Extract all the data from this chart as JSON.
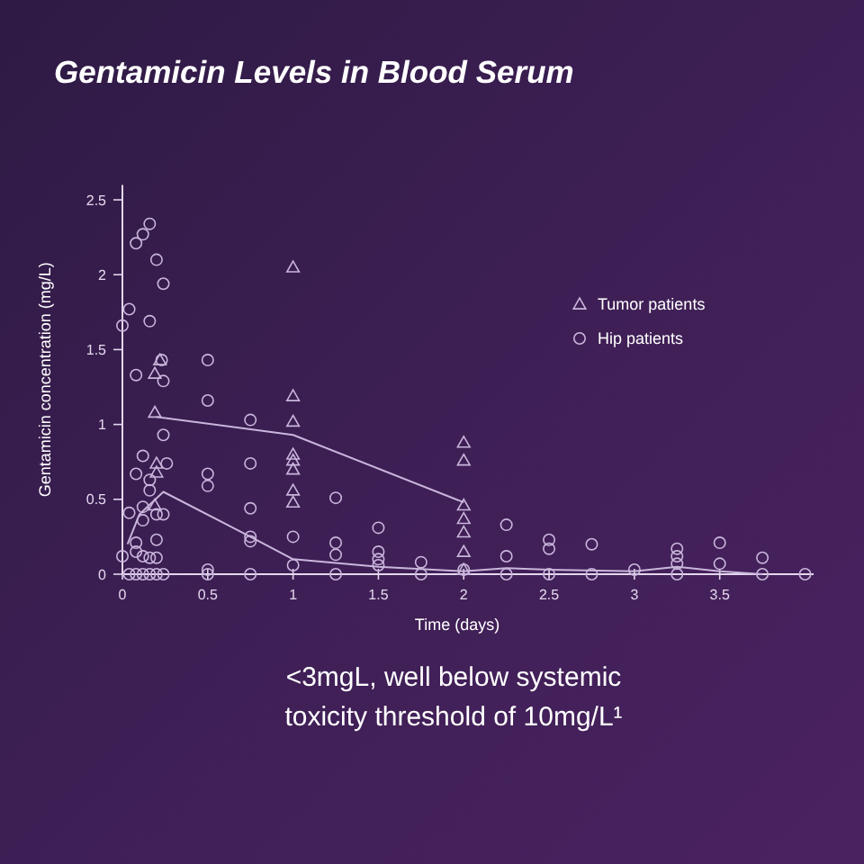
{
  "chart_data": {
    "type": "scatter",
    "title": "Gentamicin Levels in Blood Serum",
    "xlabel": "Time (days)",
    "ylabel": "Gentamicin concentration (mg/L)",
    "xlim": [
      0,
      4.05
    ],
    "ylim": [
      0,
      2.6
    ],
    "xticks": [
      0,
      0.5,
      1,
      1.5,
      2,
      2.5,
      3,
      3.5
    ],
    "yticks": [
      0,
      0.5,
      1,
      1.5,
      2,
      2.5
    ],
    "grid": false,
    "legend": "top right",
    "annotations": [
      "<3mgL, well below systemic toxicity threshold of 10mg/L¹"
    ],
    "series": [
      {
        "name": "Tumor patients",
        "marker": "triangle",
        "color": "#c9b6dc",
        "x": [
          0.22,
          0.19,
          0.19,
          0.2,
          0.2,
          0.19,
          1,
          1,
          1,
          1,
          1,
          1,
          1,
          1,
          2,
          2,
          2,
          2,
          2,
          2,
          2
        ],
        "values": [
          1.43,
          1.34,
          1.08,
          0.74,
          0.68,
          0.46,
          2.05,
          1.19,
          1.02,
          0.8,
          0.76,
          0.7,
          0.56,
          0.48,
          0.88,
          0.76,
          0.46,
          0.37,
          0.28,
          0.15,
          0.03
        ]
      },
      {
        "name": "Hip patients",
        "marker": "circle",
        "color": "#c9b6dc",
        "x": [
          0,
          0.04,
          0.08,
          0.12,
          0.16,
          0.2,
          0.24,
          0.16,
          0.08,
          0.24,
          0.23,
          0.24,
          0.12,
          0.08,
          0.16,
          0.16,
          0.26,
          0.04,
          0.12,
          0.12,
          0.2,
          0.24,
          0,
          0.08,
          0.08,
          0.12,
          0.16,
          0.2,
          0.2,
          0.04,
          0.08,
          0.12,
          0.16,
          0.2,
          0.24,
          0.5,
          0.5,
          0.5,
          0.5,
          0.5,
          0.5,
          0.75,
          0.75,
          0.75,
          0.75,
          0.75,
          0.75,
          1,
          1,
          1.25,
          1.25,
          1.25,
          1.25,
          1.5,
          1.5,
          1.5,
          1.5,
          1.75,
          1.75,
          2,
          2.25,
          2.25,
          2.25,
          2.5,
          2.5,
          2.5,
          2.75,
          2.75,
          3,
          3.25,
          3.25,
          3.25,
          3.25,
          3.5,
          3.5,
          3.75,
          3.75,
          4
        ],
        "values": [
          1.66,
          1.77,
          2.21,
          2.27,
          2.34,
          2.1,
          1.94,
          1.69,
          1.33,
          1.29,
          1.43,
          0.93,
          0.79,
          0.67,
          0.63,
          0.56,
          0.74,
          0.41,
          0.36,
          0.45,
          0.4,
          0.4,
          0.12,
          0.21,
          0.15,
          0.12,
          0.11,
          0.11,
          0.23,
          0,
          0,
          0,
          0,
          0,
          0,
          1.43,
          1.16,
          0.67,
          0.59,
          0.03,
          0,
          1.03,
          0.74,
          0.44,
          0.25,
          0.22,
          0,
          0.25,
          0.06,
          0.51,
          0.21,
          0.13,
          0,
          0.31,
          0.15,
          0.1,
          0.06,
          0.08,
          0,
          0.03,
          0.33,
          0.12,
          0,
          0.23,
          0.17,
          0,
          0.2,
          0,
          0.03,
          0.17,
          0.12,
          0.07,
          0,
          0.21,
          0.07,
          0.11,
          0,
          0
        ]
      },
      {
        "type": "line",
        "marker": "none",
        "color": "#c9b6dc",
        "x": [
          0.2,
          1,
          2
        ],
        "values": [
          1.05,
          0.93,
          0.48
        ]
      },
      {
        "type": "line",
        "marker": "none",
        "color": "#c9b6dc",
        "x": [
          0.03,
          0.1,
          0.24,
          0.75,
          1,
          1.5,
          2,
          2.25,
          2.5,
          3,
          3.25,
          3.5,
          3.75
        ],
        "values": [
          0.2,
          0.4,
          0.55,
          0.25,
          0.1,
          0.05,
          0.02,
          0.04,
          0.03,
          0.02,
          0.05,
          0.02,
          0
        ]
      }
    ]
  }
}
